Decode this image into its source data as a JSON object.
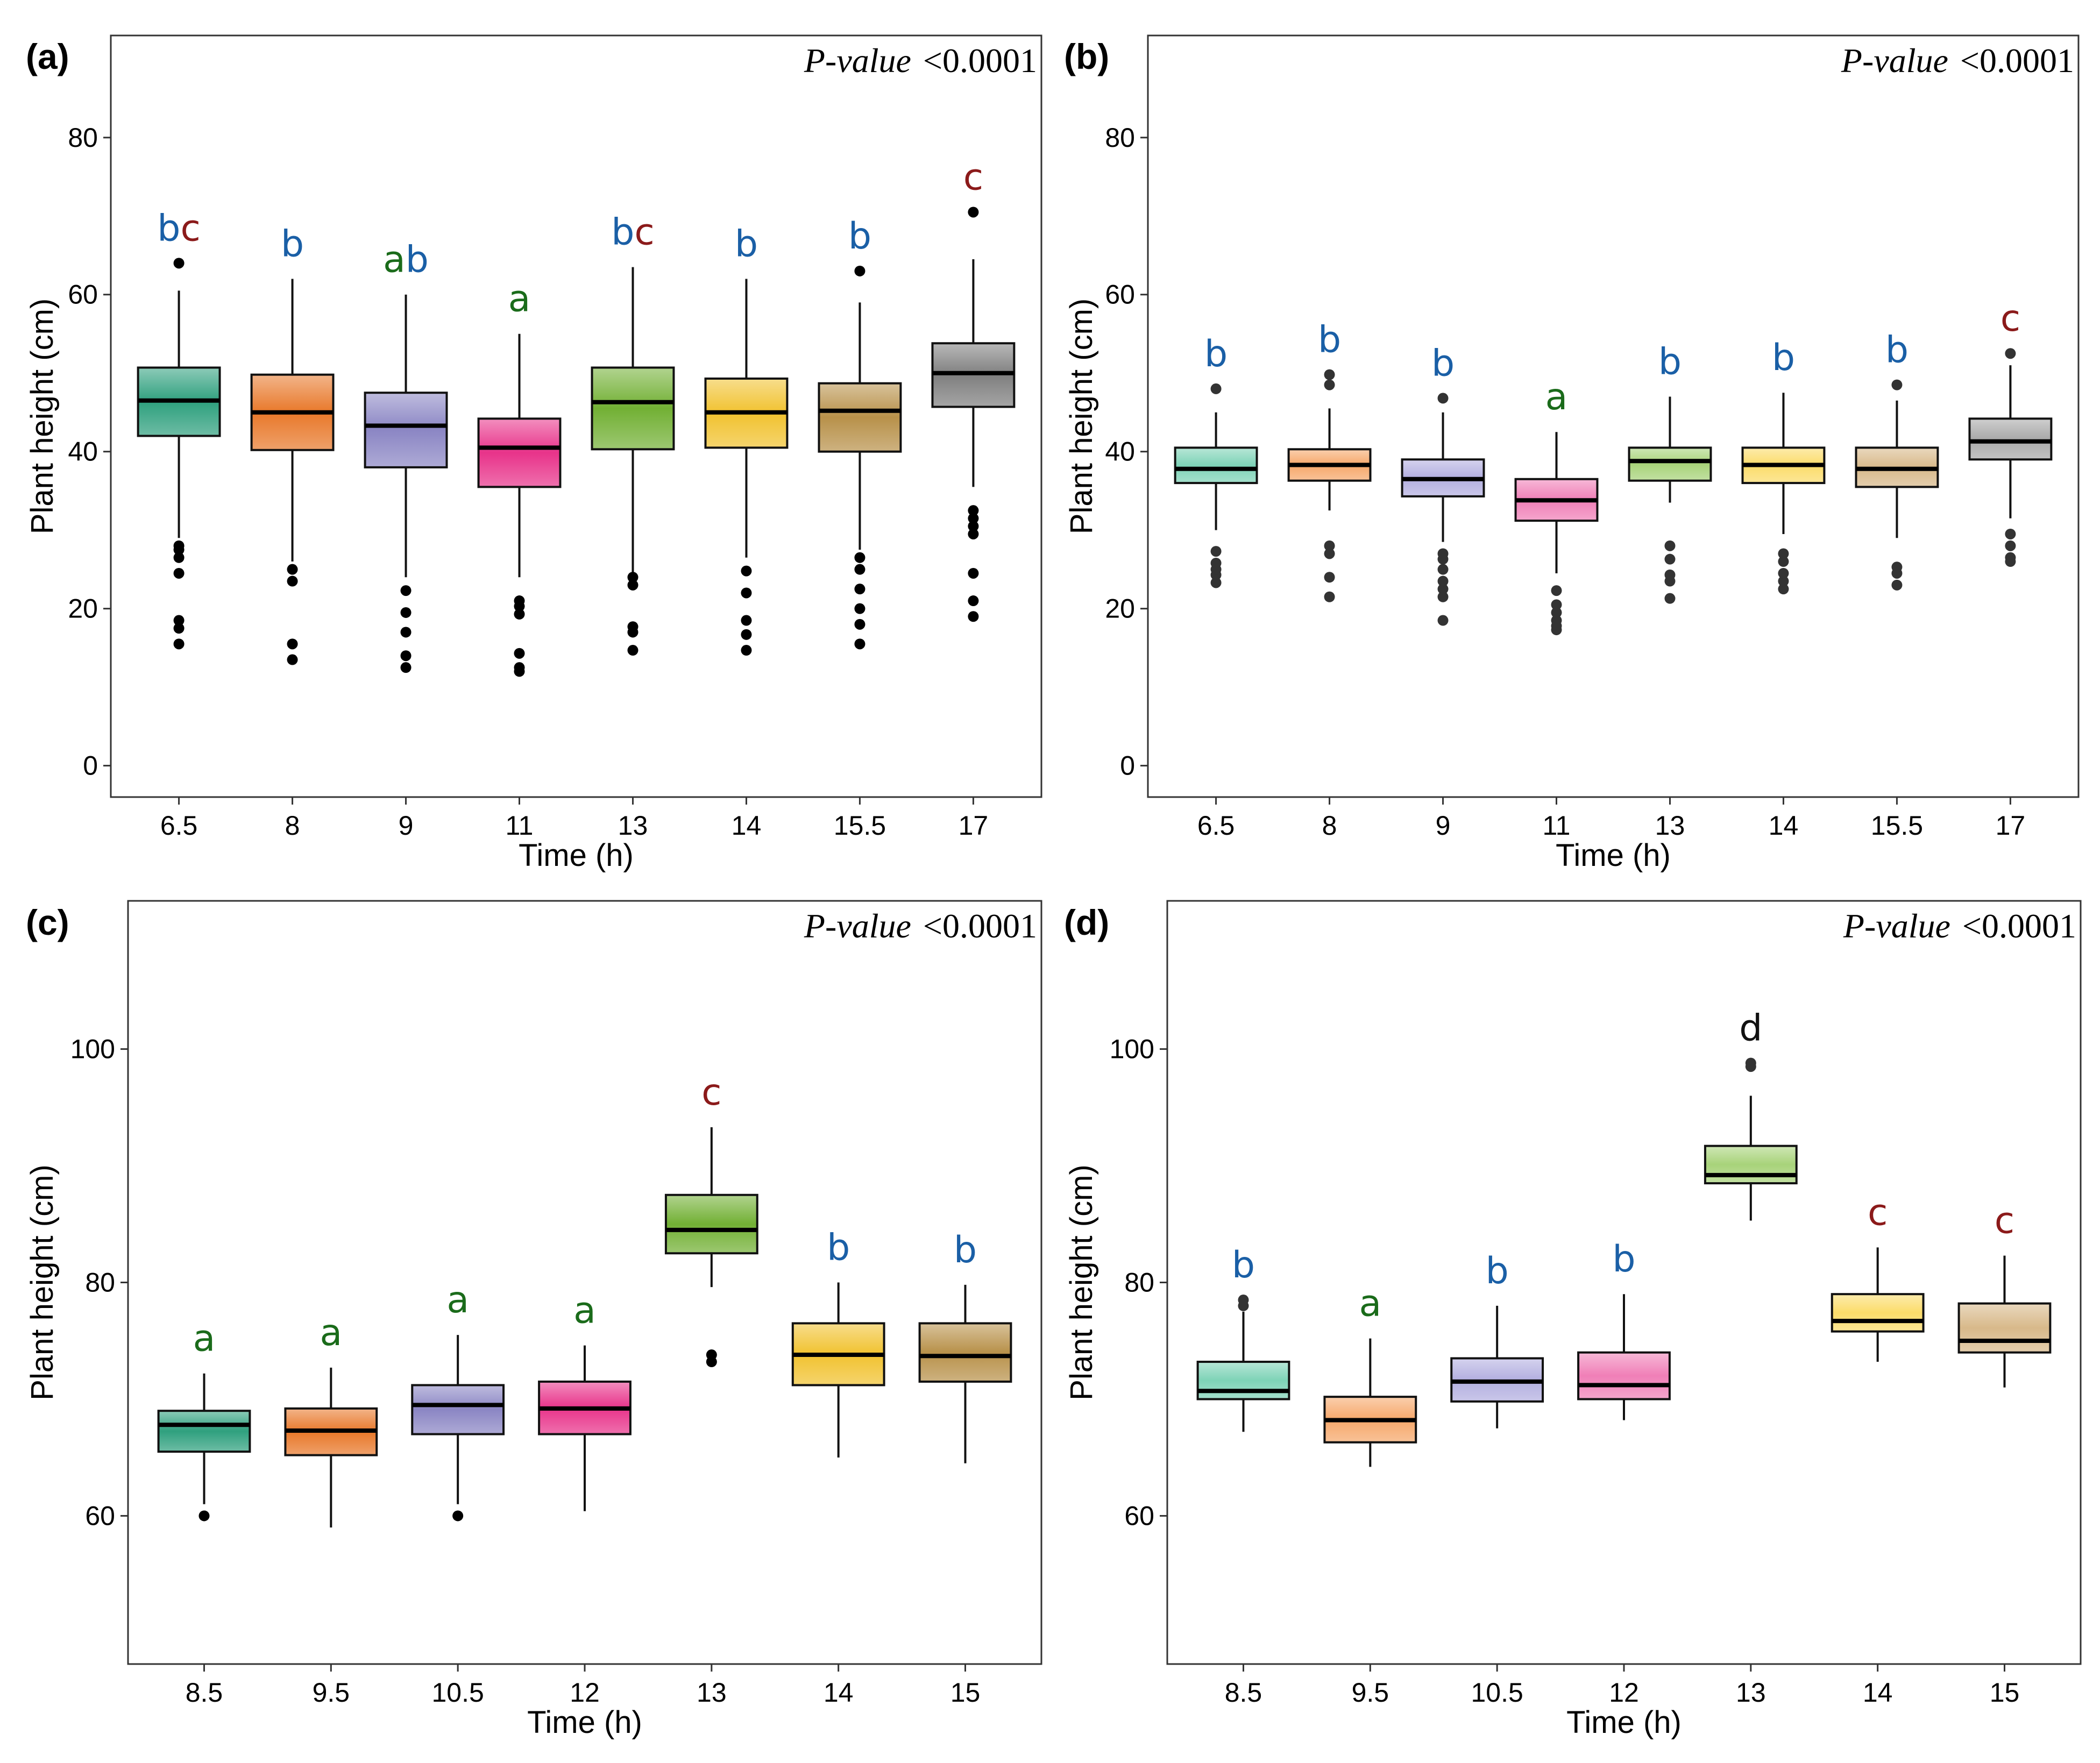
{
  "colors": {
    "boxes": [
      "#2fa07e",
      "#e8782a",
      "#8b86c4",
      "#e8338a",
      "#72b034",
      "#f1c22f",
      "#b8914a",
      "#7f7f7f"
    ],
    "boxes_light": [
      "#7ed3b7",
      "#f6a86b",
      "#b3afe0",
      "#f07fb7",
      "#a8d37a",
      "#fbdc6a",
      "#d8b98a",
      "#a9a9a9"
    ],
    "sig": {
      "a": "#1a6b1a",
      "b": "#1a5fa6",
      "c": "#8b1a1a",
      "d": "#111111"
    }
  },
  "chart_data": [
    {
      "panel": "(a)",
      "type": "box",
      "annotation": {
        "italic": "P-value",
        "value": "<0.0001"
      },
      "xlabel": "Time (h)",
      "ylabel": "Plant height (cm)",
      "ylim": [
        -4,
        93
      ],
      "yticks": [
        0,
        20,
        40,
        60,
        80
      ],
      "palette": "dark",
      "categories": [
        "6.5",
        "8",
        "9",
        "11",
        "13",
        "14",
        "15.5",
        "17"
      ],
      "boxes": [
        {
          "q1": 42,
          "median": 46.5,
          "q3": 50.7,
          "whislo": 29,
          "whishi": 60.5,
          "outliers": [
            15.5,
            17.5,
            18.5,
            24.5,
            26.5,
            27.5,
            28,
            64
          ]
        },
        {
          "q1": 40.2,
          "median": 45,
          "q3": 49.8,
          "whislo": 26,
          "whishi": 62,
          "outliers": [
            13.5,
            15.5,
            23.5,
            25
          ]
        },
        {
          "q1": 38,
          "median": 43.3,
          "q3": 47.5,
          "whislo": 24,
          "whishi": 60,
          "outliers": [
            12.5,
            14,
            17,
            19.5,
            22.3
          ]
        },
        {
          "q1": 35.5,
          "median": 40.5,
          "q3": 44.2,
          "whislo": 24,
          "whishi": 55,
          "outliers": [
            12,
            12.5,
            14.3,
            19.3,
            20.3,
            21
          ]
        },
        {
          "q1": 40.3,
          "median": 46.3,
          "q3": 50.7,
          "whislo": 24.5,
          "whishi": 63.5,
          "outliers": [
            14.7,
            17,
            17.7,
            23,
            24
          ]
        },
        {
          "q1": 40.5,
          "median": 45,
          "q3": 49.3,
          "whislo": 26.5,
          "whishi": 62,
          "outliers": [
            14.7,
            16.7,
            18.5,
            22,
            24.8
          ]
        },
        {
          "q1": 40,
          "median": 45.2,
          "q3": 48.7,
          "whislo": 27.5,
          "whishi": 59,
          "outliers": [
            15.5,
            18,
            20,
            22.5,
            25,
            26.5,
            63
          ]
        },
        {
          "q1": 45.7,
          "median": 50,
          "q3": 53.8,
          "whislo": 35.5,
          "whishi": 64.5,
          "outliers": [
            19,
            21,
            24.5,
            29.5,
            30.5,
            31.5,
            32.5,
            70.5
          ]
        }
      ],
      "significance": [
        [
          {
            "t": "b",
            "c": "b"
          },
          {
            "t": "c",
            "c": "c"
          }
        ],
        [
          {
            "t": "b",
            "c": "b"
          }
        ],
        [
          {
            "t": "a",
            "c": "a"
          },
          {
            "t": "b",
            "c": "b"
          }
        ],
        [
          {
            "t": "a",
            "c": "a"
          }
        ],
        [
          {
            "t": "b",
            "c": "b"
          },
          {
            "t": "c",
            "c": "c"
          }
        ],
        [
          {
            "t": "b",
            "c": "b"
          }
        ],
        [
          {
            "t": "b",
            "c": "b"
          }
        ],
        [
          {
            "t": "c",
            "c": "c"
          }
        ]
      ]
    },
    {
      "panel": "(b)",
      "type": "box",
      "annotation": {
        "italic": "P-value",
        "value": "<0.0001"
      },
      "xlabel": "Time (h)",
      "ylabel": "Plant height (cm)",
      "ylim": [
        -4,
        93
      ],
      "yticks": [
        0,
        20,
        40,
        60,
        80
      ],
      "palette": "light",
      "categories": [
        "6.5",
        "8",
        "9",
        "11",
        "13",
        "14",
        "15.5",
        "17"
      ],
      "boxes": [
        {
          "q1": 36,
          "median": 37.8,
          "q3": 40.5,
          "whislo": 30,
          "whishi": 45,
          "outliers": [
            23.3,
            24.3,
            25,
            25.8,
            27.3,
            48
          ]
        },
        {
          "q1": 36.3,
          "median": 38.3,
          "q3": 40.3,
          "whislo": 32.5,
          "whishi": 45.5,
          "outliers": [
            21.5,
            24,
            27,
            28,
            48.5,
            49.8
          ]
        },
        {
          "q1": 34.3,
          "median": 36.5,
          "q3": 39,
          "whislo": 28.5,
          "whishi": 45,
          "outliers": [
            18.5,
            21.5,
            22.5,
            23.5,
            25,
            26.3,
            27,
            46.8
          ]
        },
        {
          "q1": 31.2,
          "median": 33.8,
          "q3": 36.5,
          "whislo": 24.5,
          "whishi": 42.5,
          "outliers": [
            17.3,
            17.8,
            18.5,
            19.5,
            20.5,
            22.3
          ]
        },
        {
          "q1": 36.3,
          "median": 38.8,
          "q3": 40.5,
          "whislo": 33.5,
          "whishi": 47,
          "outliers": [
            21.3,
            23.5,
            24.3,
            26.3,
            28
          ]
        },
        {
          "q1": 36,
          "median": 38.3,
          "q3": 40.5,
          "whislo": 29.5,
          "whishi": 47.5,
          "outliers": [
            22.5,
            23.5,
            24.5,
            26,
            27
          ]
        },
        {
          "q1": 35.5,
          "median": 37.8,
          "q3": 40.5,
          "whislo": 29,
          "whishi": 46.5,
          "outliers": [
            23,
            24.5,
            25.3,
            48.5
          ]
        },
        {
          "q1": 39,
          "median": 41.3,
          "q3": 44.2,
          "whislo": 31.5,
          "whishi": 51,
          "outliers": [
            26,
            26.5,
            28,
            29.5,
            52.5
          ]
        }
      ],
      "significance": [
        [
          {
            "t": "b",
            "c": "b"
          }
        ],
        [
          {
            "t": "b",
            "c": "b"
          }
        ],
        [
          {
            "t": "b",
            "c": "b"
          }
        ],
        [
          {
            "t": "a",
            "c": "a"
          }
        ],
        [
          {
            "t": "b",
            "c": "b"
          }
        ],
        [
          {
            "t": "b",
            "c": "b"
          }
        ],
        [
          {
            "t": "b",
            "c": "b"
          }
        ],
        [
          {
            "t": "c",
            "c": "c"
          }
        ]
      ]
    },
    {
      "panel": "(c)",
      "type": "box",
      "annotation": {
        "italic": "P-value",
        "value": "<0.0001"
      },
      "xlabel": "Time (h)",
      "ylabel": "Plant height (cm)",
      "ylim": [
        47.3,
        112.7
      ],
      "yticks": [
        60,
        80,
        100
      ],
      "palette": "dark",
      "categories": [
        "8.5",
        "9.5",
        "10.5",
        "12",
        "13",
        "14",
        "15"
      ],
      "boxes": [
        {
          "q1": 65.5,
          "median": 67.8,
          "q3": 69,
          "whislo": 61,
          "whishi": 72.2,
          "outliers": [
            60
          ]
        },
        {
          "q1": 65.2,
          "median": 67.3,
          "q3": 69.2,
          "whislo": 59,
          "whishi": 72.7,
          "outliers": []
        },
        {
          "q1": 67,
          "median": 69.5,
          "q3": 71.2,
          "whislo": 61,
          "whishi": 75.5,
          "outliers": [
            60
          ]
        },
        {
          "q1": 67,
          "median": 69.2,
          "q3": 71.5,
          "whislo": 60.4,
          "whishi": 74.6,
          "outliers": []
        },
        {
          "q1": 82.5,
          "median": 84.5,
          "q3": 87.5,
          "whislo": 79.6,
          "whishi": 93.3,
          "outliers": [
            73.2,
            73.8
          ]
        },
        {
          "q1": 71.2,
          "median": 73.8,
          "q3": 76.5,
          "whislo": 65,
          "whishi": 80,
          "outliers": []
        },
        {
          "q1": 71.5,
          "median": 73.7,
          "q3": 76.5,
          "whislo": 64.5,
          "whishi": 79.8,
          "outliers": []
        }
      ],
      "significance": [
        [
          {
            "t": "a",
            "c": "a"
          }
        ],
        [
          {
            "t": "a",
            "c": "a"
          }
        ],
        [
          {
            "t": "a",
            "c": "a"
          }
        ],
        [
          {
            "t": "a",
            "c": "a"
          }
        ],
        [
          {
            "t": "c",
            "c": "c"
          }
        ],
        [
          {
            "t": "b",
            "c": "b"
          }
        ],
        [
          {
            "t": "b",
            "c": "b"
          }
        ]
      ]
    },
    {
      "panel": "(d)",
      "type": "box",
      "annotation": {
        "italic": "P-value",
        "value": "<0.0001"
      },
      "xlabel": "Time (h)",
      "ylabel": "Plant height (cm)",
      "ylim": [
        47.3,
        112.7
      ],
      "yticks": [
        60,
        80,
        100
      ],
      "palette": "light",
      "categories": [
        "8.5",
        "9.5",
        "10.5",
        "12",
        "13",
        "14",
        "15"
      ],
      "boxes": [
        {
          "q1": 70,
          "median": 70.7,
          "q3": 73.2,
          "whislo": 67.2,
          "whishi": 77.5,
          "outliers": [
            78,
            78.5
          ]
        },
        {
          "q1": 66.3,
          "median": 68.2,
          "q3": 70.2,
          "whislo": 64.2,
          "whishi": 75.2,
          "outliers": []
        },
        {
          "q1": 69.8,
          "median": 71.5,
          "q3": 73.5,
          "whislo": 67.5,
          "whishi": 78,
          "outliers": []
        },
        {
          "q1": 70,
          "median": 71.2,
          "q3": 74,
          "whislo": 68.2,
          "whishi": 79,
          "outliers": []
        },
        {
          "q1": 88.5,
          "median": 89.2,
          "q3": 91.7,
          "whislo": 85.3,
          "whishi": 96,
          "outliers": [
            98.5,
            98.8
          ]
        },
        {
          "q1": 75.8,
          "median": 76.7,
          "q3": 79,
          "whislo": 73.2,
          "whishi": 83,
          "outliers": []
        },
        {
          "q1": 74,
          "median": 75,
          "q3": 78.2,
          "whislo": 71,
          "whishi": 82.3,
          "outliers": []
        }
      ],
      "significance": [
        [
          {
            "t": "b",
            "c": "b"
          }
        ],
        [
          {
            "t": "a",
            "c": "a"
          }
        ],
        [
          {
            "t": "b",
            "c": "b"
          }
        ],
        [
          {
            "t": "b",
            "c": "b"
          }
        ],
        [
          {
            "t": "d",
            "c": "d"
          }
        ],
        [
          {
            "t": "c",
            "c": "c"
          }
        ],
        [
          {
            "t": "c",
            "c": "c"
          }
        ]
      ]
    }
  ]
}
